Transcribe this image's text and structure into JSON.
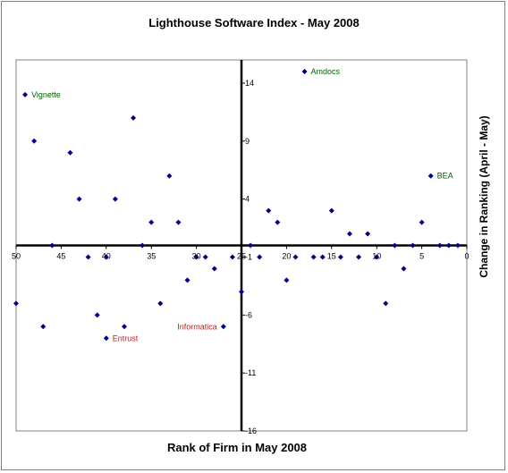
{
  "chart_data": {
    "type": "scatter",
    "title": "Lighthouse Software Index - May 2008",
    "xlabel": "Rank of Firm in May 2008",
    "ylabel": "Change in Ranking (April - May)",
    "xlim": [
      0,
      50
    ],
    "x_reversed": true,
    "ylim": [
      -16,
      16
    ],
    "x_ticks": [
      50,
      45,
      40,
      35,
      30,
      25,
      20,
      15,
      10,
      5,
      0
    ],
    "y_ticks": [
      14,
      9,
      4,
      -1,
      -6,
      -11,
      -16
    ],
    "grid": false,
    "legend": "none",
    "marker_color": "#00008b",
    "points": [
      {
        "x": 49,
        "y": 13
      },
      {
        "x": 48,
        "y": 9
      },
      {
        "x": 44,
        "y": 8
      },
      {
        "x": 43,
        "y": 4
      },
      {
        "x": 37,
        "y": 11
      },
      {
        "x": 39,
        "y": 4
      },
      {
        "x": 33,
        "y": 6
      },
      {
        "x": 35,
        "y": 2
      },
      {
        "x": 32,
        "y": 2
      },
      {
        "x": 46,
        "y": 0
      },
      {
        "x": 42,
        "y": -1
      },
      {
        "x": 40,
        "y": -1
      },
      {
        "x": 36,
        "y": 0
      },
      {
        "x": 30,
        "y": -1
      },
      {
        "x": 29,
        "y": -1
      },
      {
        "x": 50,
        "y": -5
      },
      {
        "x": 47,
        "y": -7
      },
      {
        "x": 41,
        "y": -6
      },
      {
        "x": 38,
        "y": -7
      },
      {
        "x": 34,
        "y": -5
      },
      {
        "x": 40,
        "y": -8
      },
      {
        "x": 31,
        "y": -3
      },
      {
        "x": 28,
        "y": -2
      },
      {
        "x": 27,
        "y": -7
      },
      {
        "x": 26,
        "y": -1
      },
      {
        "x": 25,
        "y": -4
      },
      {
        "x": 24,
        "y": 0
      },
      {
        "x": 23,
        "y": -1
      },
      {
        "x": 22,
        "y": 3
      },
      {
        "x": 21,
        "y": 2
      },
      {
        "x": 20,
        "y": -3
      },
      {
        "x": 19,
        "y": -1
      },
      {
        "x": 18,
        "y": 15
      },
      {
        "x": 17,
        "y": -1
      },
      {
        "x": 16,
        "y": -1
      },
      {
        "x": 15,
        "y": 3
      },
      {
        "x": 14,
        "y": -1
      },
      {
        "x": 13,
        "y": 1
      },
      {
        "x": 12,
        "y": -1
      },
      {
        "x": 11,
        "y": 1
      },
      {
        "x": 10,
        "y": -1
      },
      {
        "x": 9,
        "y": -5
      },
      {
        "x": 8,
        "y": 0
      },
      {
        "x": 7,
        "y": -2
      },
      {
        "x": 6,
        "y": 0
      },
      {
        "x": 5,
        "y": 2
      },
      {
        "x": 4,
        "y": 6
      },
      {
        "x": 3,
        "y": 0
      },
      {
        "x": 2,
        "y": 0
      },
      {
        "x": 1,
        "y": 0
      }
    ],
    "annotations": [
      {
        "text": "Vignette",
        "x": 49,
        "y": 13,
        "color": "#006400",
        "anchor": "right"
      },
      {
        "text": "Amdocs",
        "x": 18,
        "y": 15,
        "color": "#006400",
        "anchor": "right"
      },
      {
        "text": "BEA",
        "x": 4,
        "y": 6,
        "color": "#006400",
        "anchor": "right"
      },
      {
        "text": "Entrust",
        "x": 40,
        "y": -8,
        "color": "#b22222",
        "anchor": "right"
      },
      {
        "text": "Informatica",
        "x": 27,
        "y": -7,
        "color": "#b22222",
        "anchor": "left"
      }
    ]
  }
}
